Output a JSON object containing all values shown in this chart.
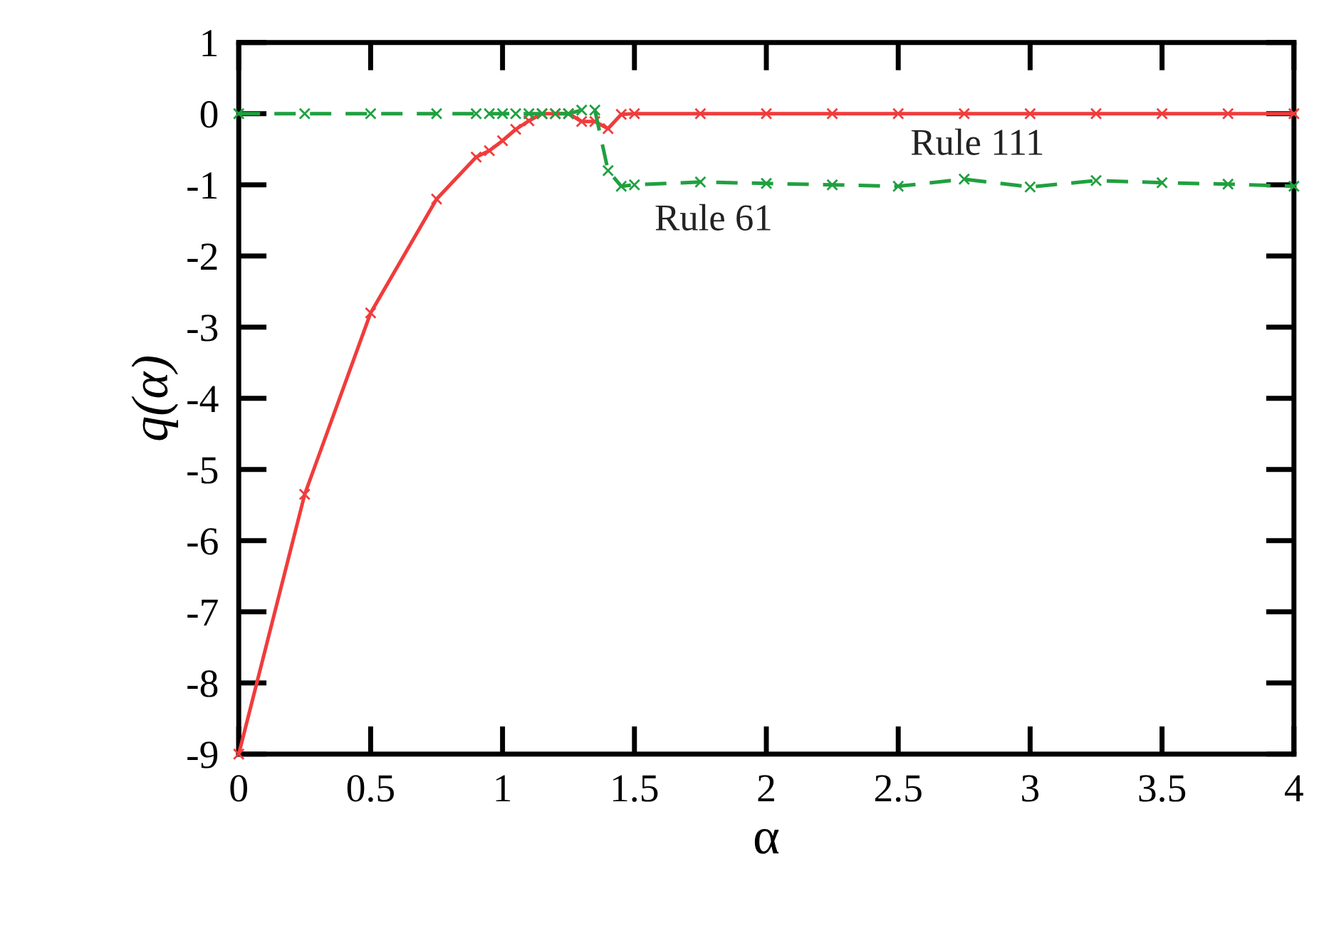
{
  "chart_data": {
    "type": "line",
    "xlabel": "α",
    "ylabel": "q(α)",
    "xlim": [
      0,
      4
    ],
    "ylim": [
      -9,
      1
    ],
    "xticks": [
      0,
      0.5,
      1,
      1.5,
      2,
      2.5,
      3,
      3.5,
      4
    ],
    "yticks": [
      -9,
      -8,
      -7,
      -6,
      -5,
      -4,
      -3,
      -2,
      -1,
      0,
      1
    ],
    "grid": false,
    "legend": false,
    "series": [
      {
        "name": "Rule 111",
        "color": "#f03c3c",
        "line_style": "solid",
        "marker": "cross",
        "x": [
          0,
          0.25,
          0.5,
          0.75,
          0.9,
          0.95,
          1.0,
          1.05,
          1.1,
          1.15,
          1.2,
          1.25,
          1.3,
          1.35,
          1.4,
          1.45,
          1.5,
          1.75,
          2,
          2.25,
          2.5,
          2.75,
          3,
          3.25,
          3.5,
          3.75,
          4
        ],
        "values": [
          -9,
          -5.35,
          -2.8,
          -1.2,
          -0.61,
          -0.52,
          -0.38,
          -0.22,
          -0.1,
          0,
          0,
          0,
          -0.11,
          -0.11,
          -0.21,
          -0.01,
          0,
          0,
          0,
          0,
          0,
          0,
          0,
          0,
          0,
          0,
          0
        ]
      },
      {
        "name": "Rule 61",
        "color": "#20a040",
        "line_style": "dashed",
        "marker": "cross",
        "x": [
          0,
          0.25,
          0.5,
          0.75,
          0.9,
          0.95,
          1.0,
          1.05,
          1.1,
          1.15,
          1.2,
          1.25,
          1.3,
          1.35,
          1.4,
          1.45,
          1.5,
          1.75,
          2,
          2.25,
          2.5,
          2.75,
          3,
          3.25,
          3.5,
          3.75,
          4
        ],
        "values": [
          0,
          0,
          0,
          0,
          0,
          0,
          0,
          0,
          0,
          0,
          0,
          0,
          0.05,
          0.05,
          -0.8,
          -1.02,
          -1.0,
          -0.96,
          -0.98,
          -1.0,
          -1.02,
          -0.92,
          -1.03,
          -0.94,
          -0.97,
          -0.99,
          -1.02
        ]
      }
    ]
  }
}
